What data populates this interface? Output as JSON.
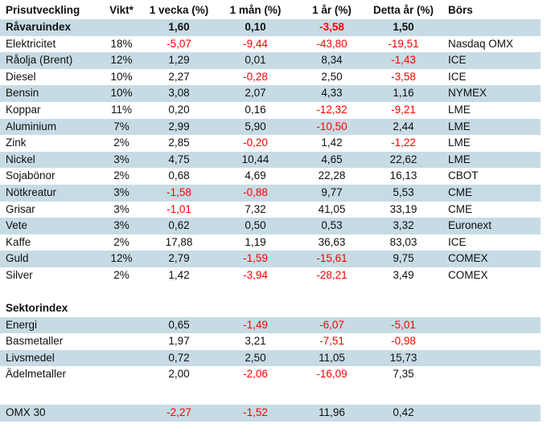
{
  "table": {
    "title": "Prisutveckling",
    "headers": [
      {
        "label": "Prisutveckling",
        "align": "left"
      },
      {
        "label": "Vikt*",
        "align": "center"
      },
      {
        "label": "1 vecka (%)",
        "align": "center"
      },
      {
        "label": "1 mån (%)",
        "align": "center"
      },
      {
        "label": "1 år (%)",
        "align": "center"
      },
      {
        "label": "Detta år (%)",
        "align": "center"
      },
      {
        "label": "Börs",
        "align": "left"
      }
    ],
    "colors": {
      "row_shading": "#c7dbe4",
      "negative_value": "#fe0000",
      "text": "#101010",
      "background": "#ffffff"
    },
    "rows": [
      {
        "kind": "data",
        "name": "Råvaruindex",
        "vikt": "",
        "cells": [
          "1,60",
          "0,10",
          "-3,58",
          "1,50"
        ],
        "bors": "",
        "bold": true,
        "shaded": true
      },
      {
        "kind": "data",
        "name": "Elektricitet",
        "vikt": "18%",
        "cells": [
          "-5,07",
          "-9,44",
          "-43,80",
          "-19,51"
        ],
        "bors": "Nasdaq OMX",
        "bold": false,
        "shaded": false
      },
      {
        "kind": "data",
        "name": "Råolja (Brent)",
        "vikt": "12%",
        "cells": [
          "1,29",
          "0,01",
          "8,34",
          "-1,43"
        ],
        "bors": "ICE",
        "bold": false,
        "shaded": true
      },
      {
        "kind": "data",
        "name": "Diesel",
        "vikt": "10%",
        "cells": [
          "2,27",
          "-0,28",
          "2,50",
          "-3,58"
        ],
        "bors": "ICE",
        "bold": false,
        "shaded": false
      },
      {
        "kind": "data",
        "name": "Bensin",
        "vikt": "10%",
        "cells": [
          "3,08",
          "2,07",
          "4,33",
          "1,16"
        ],
        "bors": "NYMEX",
        "bold": false,
        "shaded": true
      },
      {
        "kind": "data",
        "name": "Koppar",
        "vikt": "11%",
        "cells": [
          "0,20",
          "0,16",
          "-12,32",
          "-9,21"
        ],
        "bors": "LME",
        "bold": false,
        "shaded": false
      },
      {
        "kind": "data",
        "name": "Aluminium",
        "vikt": "7%",
        "cells": [
          "2,99",
          "5,90",
          "-10,50",
          "2,44"
        ],
        "bors": "LME",
        "bold": false,
        "shaded": true
      },
      {
        "kind": "data",
        "name": "Zink",
        "vikt": "2%",
        "cells": [
          "2,85",
          "-0,20",
          "1,42",
          "-1,22"
        ],
        "bors": "LME",
        "bold": false,
        "shaded": false
      },
      {
        "kind": "data",
        "name": "Nickel",
        "vikt": "3%",
        "cells": [
          "4,75",
          "10,44",
          "4,65",
          "22,62"
        ],
        "bors": "LME",
        "bold": false,
        "shaded": true
      },
      {
        "kind": "data",
        "name": "Sojabönor",
        "vikt": "2%",
        "cells": [
          "0,68",
          "4,69",
          "22,28",
          "16,13"
        ],
        "bors": "CBOT",
        "bold": false,
        "shaded": false
      },
      {
        "kind": "data",
        "name": "Nötkreatur",
        "vikt": "3%",
        "cells": [
          "-1,58",
          "-0,88",
          "9,77",
          "5,53"
        ],
        "bors": "CME",
        "bold": false,
        "shaded": true
      },
      {
        "kind": "data",
        "name": "Grisar",
        "vikt": "3%",
        "cells": [
          "-1,01",
          "7,32",
          "41,05",
          "33,19"
        ],
        "bors": "CME",
        "bold": false,
        "shaded": false
      },
      {
        "kind": "data",
        "name": "Vete",
        "vikt": "3%",
        "cells": [
          "0,62",
          "0,50",
          "0,53",
          "3,32"
        ],
        "bors": "Euronext",
        "bold": false,
        "shaded": true
      },
      {
        "kind": "data",
        "name": "Kaffe",
        "vikt": "2%",
        "cells": [
          "17,88",
          "1,19",
          "36,63",
          "83,03"
        ],
        "bors": "ICE",
        "bold": false,
        "shaded": false
      },
      {
        "kind": "data",
        "name": "Guld",
        "vikt": "12%",
        "cells": [
          "2,79",
          "-1,59",
          "-15,61",
          "9,75"
        ],
        "bors": "COMEX",
        "bold": false,
        "shaded": true
      },
      {
        "kind": "data",
        "name": "Silver",
        "vikt": "2%",
        "cells": [
          "1,42",
          "-3,94",
          "-28,21",
          "3,49"
        ],
        "bors": "COMEX",
        "bold": false,
        "shaded": false
      },
      {
        "kind": "blank1"
      },
      {
        "kind": "section",
        "name": "Sektorindex"
      },
      {
        "kind": "data",
        "name": "Energi",
        "vikt": "",
        "cells": [
          "0,65",
          "-1,49",
          "-6,07",
          "-5,01"
        ],
        "bors": "",
        "bold": false,
        "shaded": true
      },
      {
        "kind": "data",
        "name": "Basmetaller",
        "vikt": "",
        "cells": [
          "1,97",
          "3,21",
          "-7,51",
          "-0,98"
        ],
        "bors": "",
        "bold": false,
        "shaded": false
      },
      {
        "kind": "data",
        "name": "Livsmedel",
        "vikt": "",
        "cells": [
          "0,72",
          "2,50",
          "11,05",
          "15,73"
        ],
        "bors": "",
        "bold": false,
        "shaded": true
      },
      {
        "kind": "data",
        "name": "Ädelmetaller",
        "vikt": "",
        "cells": [
          "2,00",
          "-2,06",
          "-16,09",
          "7,35"
        ],
        "bors": "",
        "bold": false,
        "shaded": false
      },
      {
        "kind": "blank2"
      },
      {
        "kind": "data",
        "name": "OMX 30",
        "vikt": "",
        "cells": [
          "-2,27",
          "-1,52",
          "11,96",
          "0,42"
        ],
        "bors": "",
        "bold": false,
        "shaded": true
      }
    ]
  }
}
